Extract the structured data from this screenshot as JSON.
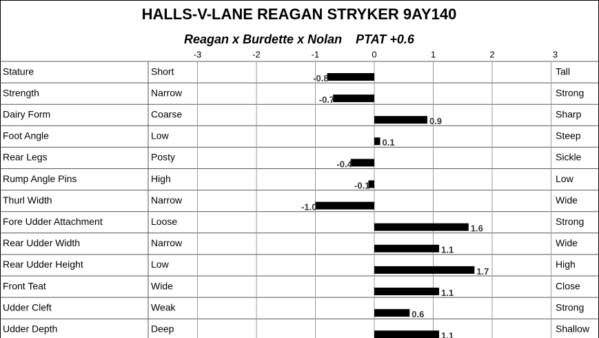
{
  "chart_data": {
    "type": "bar",
    "title": "HALLS-V-LANE REAGAN STRYKER  9AY140",
    "subtitle": "Reagan x Burdette x Nolan    PTAT +0.6",
    "categories": [
      "Stature",
      "Strength",
      "Dairy Form",
      "Foot Angle",
      "Rear Legs",
      "Rump Angle Pins",
      "Thurl Width",
      "Fore Udder Attachment",
      "Rear Udder Width",
      "Rear Udder Height",
      "Front Teat",
      "Udder Cleft",
      "Udder Depth"
    ],
    "low_labels": [
      "Short",
      "Narrow",
      "Coarse",
      "Low",
      "Posty",
      "High",
      "Narrow",
      "Loose",
      "Narrow",
      "Low",
      "Wide",
      "Weak",
      "Deep"
    ],
    "high_labels": [
      "Tall",
      "Strong",
      "Sharp",
      "Steep",
      "Sickle",
      "Low",
      "Wide",
      "Strong",
      "Wide",
      "High",
      "Close",
      "Strong",
      "Shallow"
    ],
    "values": [
      -0.8,
      -0.7,
      0.9,
      0.1,
      -0.4,
      -0.1,
      -1.0,
      1.6,
      1.1,
      1.7,
      1.1,
      0.6,
      1.1
    ],
    "value_labels": [
      "-0.8",
      "-0.7",
      "0.9",
      "0.1",
      "-0.4",
      "-0.1",
      "-1.0",
      "1.6",
      "1.1",
      "1.7",
      "1.1",
      "0.6",
      "1.1"
    ],
    "color": "#000000",
    "xlim": [
      -3,
      3
    ],
    "xticks": [
      -3,
      -2,
      -1,
      0,
      1,
      2,
      3
    ],
    "grid": true
  }
}
